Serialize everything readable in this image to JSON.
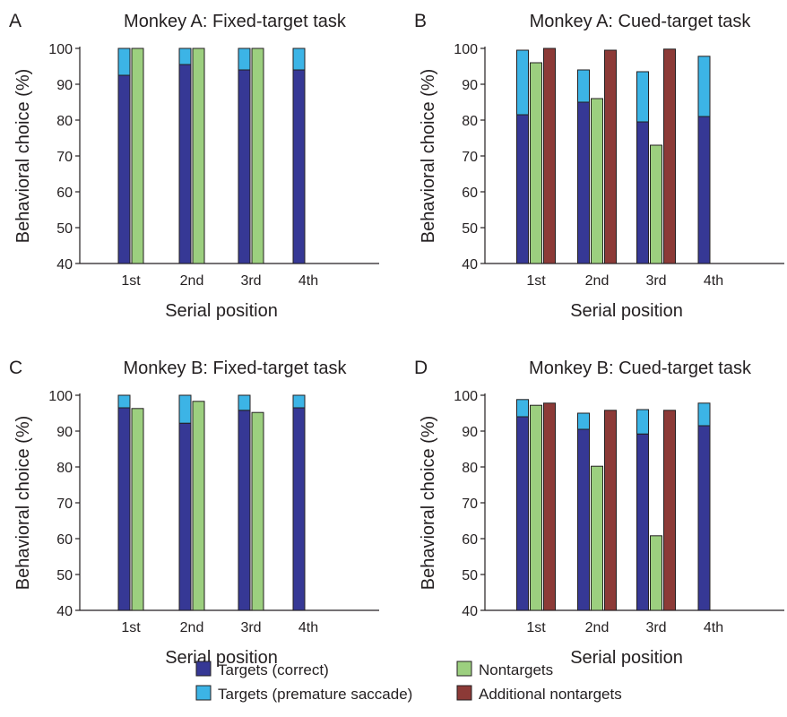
{
  "figure": {
    "legend": [
      {
        "key": "targets_correct",
        "label": "Targets (correct)",
        "color": "#363895"
      },
      {
        "key": "targets_premature",
        "label": "Targets (premature saccade)",
        "color": "#3cb4e6"
      },
      {
        "key": "nontargets",
        "label": "Nontargets",
        "color": "#9ccf7f"
      },
      {
        "key": "additional_nontargets",
        "label": "Additional nontargets",
        "color": "#8c3a37"
      }
    ]
  },
  "chart_data": [
    {
      "panel": "A",
      "type": "bar",
      "title": "Monkey A: Fixed-target task",
      "xlabel": "Serial position",
      "ylabel": "Behavioral choice (%)",
      "ylim": [
        40,
        100
      ],
      "yticks": [
        40,
        50,
        60,
        70,
        80,
        90,
        100
      ],
      "categories": [
        "1st",
        "2nd",
        "3rd",
        "4th"
      ],
      "series": [
        {
          "name": "Targets (correct)",
          "values": [
            92.5,
            95.5,
            94,
            94
          ]
        },
        {
          "name": "Targets (premature saccade)",
          "values": [
            7.5,
            4.5,
            6,
            6
          ],
          "stacked_on": "Targets (correct)"
        },
        {
          "name": "Nontargets",
          "values": [
            100,
            100,
            100,
            null
          ]
        }
      ]
    },
    {
      "panel": "B",
      "type": "bar",
      "title": "Monkey A: Cued-target task",
      "xlabel": "Serial position",
      "ylabel": "Behavioral choice (%)",
      "ylim": [
        40,
        100
      ],
      "yticks": [
        40,
        50,
        60,
        70,
        80,
        90,
        100
      ],
      "categories": [
        "1st",
        "2nd",
        "3rd",
        "4th"
      ],
      "series": [
        {
          "name": "Targets (correct)",
          "values": [
            81.5,
            85,
            79.5,
            81
          ]
        },
        {
          "name": "Targets (premature saccade)",
          "values": [
            18,
            9,
            14,
            16.8
          ],
          "stacked_on": "Targets (correct)"
        },
        {
          "name": "Nontargets",
          "values": [
            96,
            86,
            73,
            null
          ]
        },
        {
          "name": "Additional nontargets",
          "values": [
            100,
            99.5,
            99.8,
            null
          ]
        }
      ]
    },
    {
      "panel": "C",
      "type": "bar",
      "title": "Monkey B: Fixed-target task",
      "xlabel": "Serial position",
      "ylabel": "Behavioral choice (%)",
      "ylim": [
        40,
        100
      ],
      "yticks": [
        40,
        50,
        60,
        70,
        80,
        90,
        100
      ],
      "categories": [
        "1st",
        "2nd",
        "3rd",
        "4th"
      ],
      "series": [
        {
          "name": "Targets (correct)",
          "values": [
            96.5,
            92.2,
            95.8,
            96.5
          ]
        },
        {
          "name": "Targets (premature saccade)",
          "values": [
            3.5,
            7.8,
            4.2,
            3.5
          ],
          "stacked_on": "Targets (correct)"
        },
        {
          "name": "Nontargets",
          "values": [
            96.3,
            98.3,
            95.2,
            null
          ]
        }
      ]
    },
    {
      "panel": "D",
      "type": "bar",
      "title": "Monkey B: Cued-target task",
      "xlabel": "Serial position",
      "ylabel": "Behavioral choice (%)",
      "ylim": [
        40,
        100
      ],
      "yticks": [
        40,
        50,
        60,
        70,
        80,
        90,
        100
      ],
      "categories": [
        "1st",
        "2nd",
        "3rd",
        "4th"
      ],
      "series": [
        {
          "name": "Targets (correct)",
          "values": [
            94,
            90.5,
            89.2,
            91.5
          ]
        },
        {
          "name": "Targets (premature saccade)",
          "values": [
            4.8,
            4.5,
            6.8,
            6.3
          ],
          "stacked_on": "Targets (correct)"
        },
        {
          "name": "Nontargets",
          "values": [
            97.2,
            80.2,
            60.8,
            null
          ]
        },
        {
          "name": "Additional nontargets",
          "values": [
            97.8,
            95.8,
            95.8,
            null
          ]
        }
      ]
    }
  ]
}
